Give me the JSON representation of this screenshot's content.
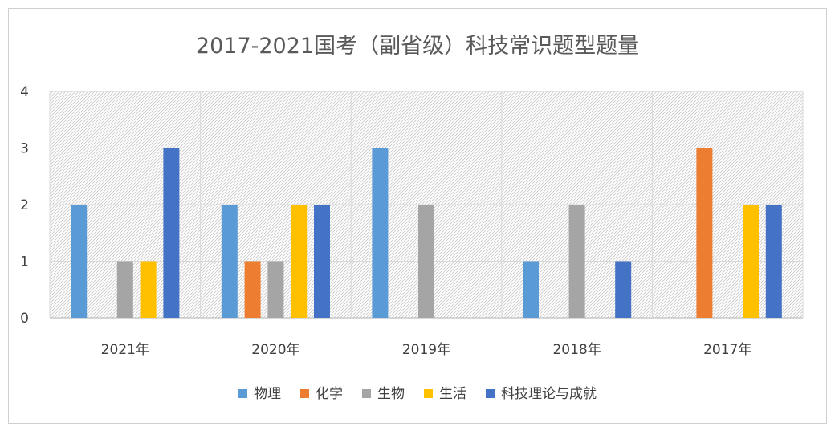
{
  "chart_data": {
    "type": "bar",
    "title": "2017-2021国考（副省级）科技常识题型题量",
    "categories": [
      "2021年",
      "2020年",
      "2019年",
      "2018年",
      "2017年"
    ],
    "series": [
      {
        "name": "物理",
        "color": "#5B9BD5",
        "values": [
          2,
          2,
          3,
          1,
          0
        ]
      },
      {
        "name": "化学",
        "color": "#ED7D31",
        "values": [
          0,
          1,
          0,
          0,
          3
        ]
      },
      {
        "name": "生物",
        "color": "#A5A5A5",
        "values": [
          1,
          1,
          2,
          2,
          0
        ]
      },
      {
        "name": "生活",
        "color": "#FFC000",
        "values": [
          1,
          2,
          0,
          0,
          2
        ]
      },
      {
        "name": "科技理论与成就",
        "color": "#4472C4",
        "values": [
          3,
          2,
          0,
          1,
          2
        ]
      }
    ],
    "ylim": [
      0,
      4
    ],
    "yticks": [
      0,
      1,
      2,
      3,
      4
    ],
    "grid": true,
    "legend": "bottom"
  }
}
